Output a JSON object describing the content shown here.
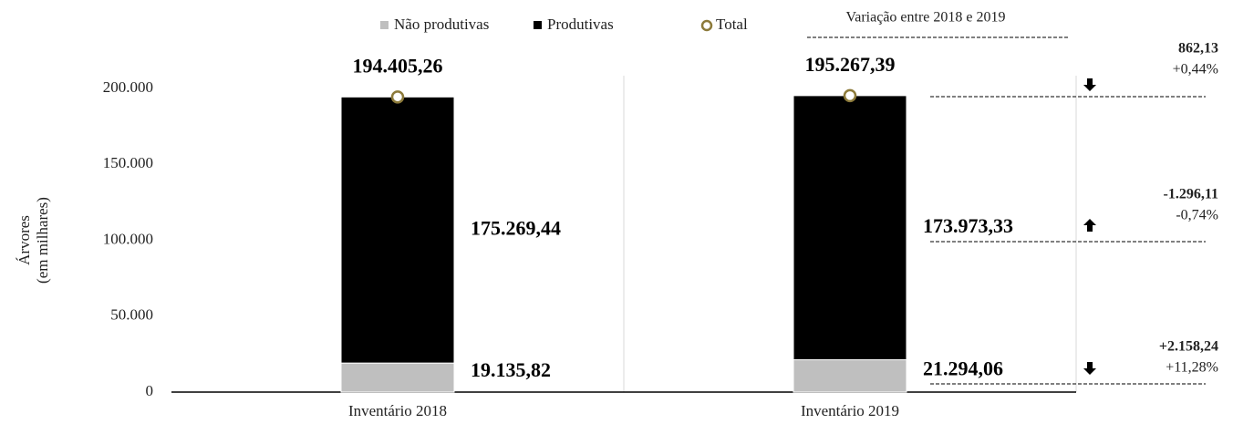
{
  "chart_data": {
    "type": "bar",
    "stacked": true,
    "categories": [
      "Inventário 2018",
      "Inventário 2019"
    ],
    "ylabel": [
      "Árvores",
      "(em milhares)"
    ],
    "series": [
      {
        "name": "Não produtivas",
        "color": "#bfbfbf",
        "values": [
          19135.82,
          21294.06
        ],
        "value_labels": [
          "19.135,82",
          "21.294,06"
        ]
      },
      {
        "name": "Produtivas",
        "color": "#000000",
        "values": [
          175269.44,
          173973.33
        ],
        "value_labels": [
          "175.269,44",
          "173.973,33"
        ]
      },
      {
        "name": "Total",
        "type": "scatter",
        "color": "#8c7a3a",
        "values": [
          194405.26,
          195267.39
        ],
        "value_labels": [
          "194.405,26",
          "195.267,39"
        ]
      }
    ],
    "ylim": [
      0,
      200000
    ],
    "yticks": [
      0,
      {
        "value": 50000,
        "label": "50.000"
      },
      {
        "value": 100000,
        "label": "100.000"
      },
      {
        "value": 150000,
        "label": "150.000"
      },
      {
        "value": 200000,
        "label": "200.000"
      }
    ],
    "variation": {
      "title": "Variação entre 2018 e 2019",
      "items": [
        {
          "absolute": "862,13",
          "percent": "+0,44%"
        },
        {
          "absolute": "-1.296,11",
          "percent": "-0,74%"
        },
        {
          "absolute": "+2.158,24",
          "percent": "+11,28%"
        }
      ]
    }
  }
}
